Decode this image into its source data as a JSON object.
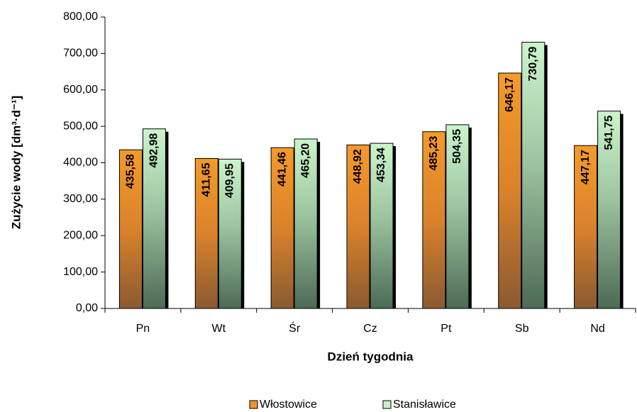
{
  "chart_data": {
    "type": "bar",
    "ylabel": "Zużycie wody [dm³·d⁻¹]",
    "xlabel": "Dzień tygodnia",
    "categories": [
      "Pn",
      "Wt",
      "Śr",
      "Cz",
      "Pt",
      "Sb",
      "Nd"
    ],
    "series": [
      {
        "name": "Włostowice",
        "color": "#f0952a",
        "values": [
          435.58,
          411.65,
          441.46,
          448.92,
          485.23,
          646.17,
          447.17
        ],
        "value_labels": [
          "435,58",
          "411,65",
          "441,46",
          "448,92",
          "485,23",
          "646,17",
          "447,17"
        ]
      },
      {
        "name": "Stanisławice",
        "color": "#c8f2c8",
        "values": [
          492.98,
          409.95,
          465.2,
          453.34,
          504.35,
          730.79,
          541.75
        ],
        "value_labels": [
          "492,98",
          "409,95",
          "465,20",
          "453,34",
          "504,35",
          "730,79",
          "541,75"
        ]
      }
    ],
    "ylim": [
      0,
      800
    ],
    "yticks": [
      {
        "value": 0,
        "label": "0,00"
      },
      {
        "value": 100,
        "label": "100,00"
      },
      {
        "value": 200,
        "label": "200,00"
      },
      {
        "value": 300,
        "label": "300,00"
      },
      {
        "value": 400,
        "label": "400,00"
      },
      {
        "value": 500,
        "label": "500,00"
      },
      {
        "value": 600,
        "label": "600,00"
      },
      {
        "value": 700,
        "label": "700,00"
      },
      {
        "value": 800,
        "label": "800,00"
      }
    ],
    "legend": "bottom"
  }
}
